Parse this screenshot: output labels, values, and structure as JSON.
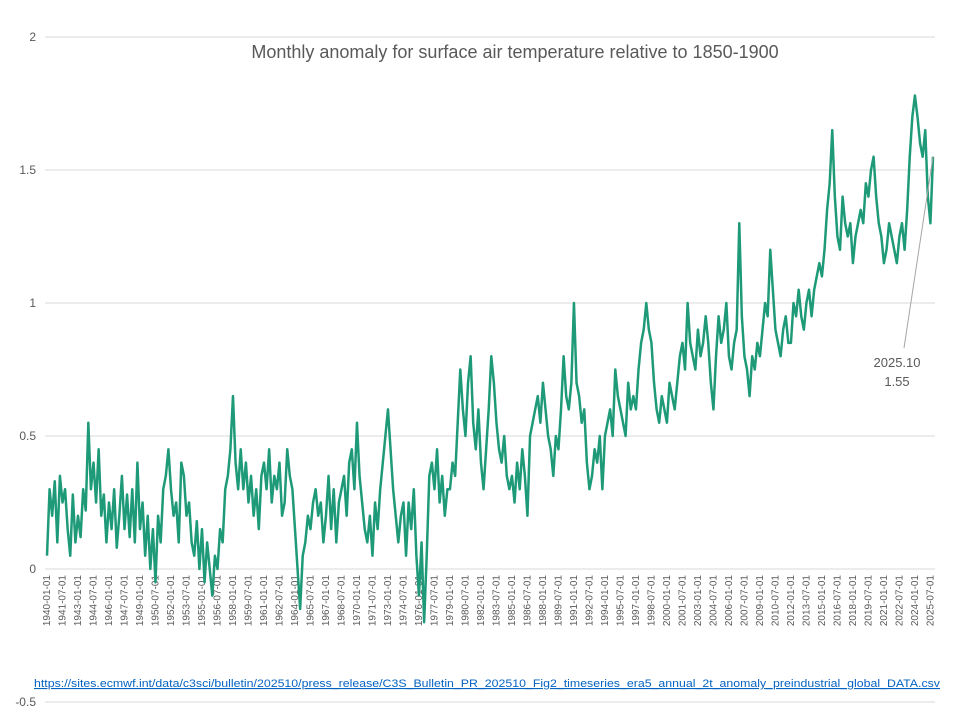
{
  "chart_data": {
    "type": "line",
    "title": "Monthly anomaly for surface air temperature relative to 1850-1900",
    "source": "https://sites.ecmwf.int/data/c3sci/bulletin/202510/press_release/C3S_Bulletin_PR_202510_Fig2_timeseries_era5_annual_2t_anomaly_preindustrial_global_DATA.csv",
    "annotation": {
      "label": "2025.10",
      "value": 1.55
    },
    "ylim": [
      -0.5,
      2
    ],
    "yticks": [
      -0.5,
      0,
      0.5,
      1,
      1.5,
      2
    ],
    "grid": true,
    "categories": [
      "1940-01-01",
      null,
      null,
      null,
      null,
      null,
      "1941-07-01",
      null,
      null,
      null,
      null,
      null,
      "1943-01-01",
      null,
      null,
      null,
      null,
      null,
      "1944-07-01",
      null,
      null,
      null,
      null,
      null,
      "1946-01-01",
      null,
      null,
      null,
      null,
      null,
      "1947-07-01",
      null,
      null,
      null,
      null,
      null,
      "1949-01-01",
      null,
      null,
      null,
      null,
      null,
      "1950-07-01",
      null,
      null,
      null,
      null,
      null,
      "1952-01-01",
      null,
      null,
      null,
      null,
      null,
      "1953-07-01",
      null,
      null,
      null,
      null,
      null,
      "1955-01-01",
      null,
      null,
      null,
      null,
      null,
      "1956-07-01",
      null,
      null,
      null,
      null,
      null,
      "1958-01-01",
      null,
      null,
      null,
      null,
      null,
      "1959-07-01",
      null,
      null,
      null,
      null,
      null,
      "1961-01-01",
      null,
      null,
      null,
      null,
      null,
      "1962-07-01",
      null,
      null,
      null,
      null,
      null,
      "1964-01-01",
      null,
      null,
      null,
      null,
      null,
      "1965-07-01",
      null,
      null,
      null,
      null,
      null,
      "1967-01-01",
      null,
      null,
      null,
      null,
      null,
      "1968-07-01",
      null,
      null,
      null,
      null,
      null,
      "1970-01-01",
      null,
      null,
      null,
      null,
      null,
      "1971-07-01",
      null,
      null,
      null,
      null,
      null,
      "1973-01-01",
      null,
      null,
      null,
      null,
      null,
      "1974-07-01",
      null,
      null,
      null,
      null,
      null,
      "1976-01-01",
      null,
      null,
      null,
      null,
      null,
      "1977-07-01",
      null,
      null,
      null,
      null,
      null,
      "1979-01-01",
      null,
      null,
      null,
      null,
      null,
      "1980-07-01",
      null,
      null,
      null,
      null,
      null,
      "1982-01-01",
      null,
      null,
      null,
      null,
      null,
      "1983-07-01",
      null,
      null,
      null,
      null,
      null,
      "1985-01-01",
      null,
      null,
      null,
      null,
      null,
      "1986-07-01",
      null,
      null,
      null,
      null,
      null,
      "1988-01-01",
      null,
      null,
      null,
      null,
      null,
      "1989-07-01",
      null,
      null,
      null,
      null,
      null,
      "1991-01-01",
      null,
      null,
      null,
      null,
      null,
      "1992-07-01",
      null,
      null,
      null,
      null,
      null,
      "1994-01-01",
      null,
      null,
      null,
      null,
      null,
      "1995-07-01",
      null,
      null,
      null,
      null,
      null,
      "1997-01-01",
      null,
      null,
      null,
      null,
      null,
      "1998-07-01",
      null,
      null,
      null,
      null,
      null,
      "2000-01-01",
      null,
      null,
      null,
      null,
      null,
      "2001-07-01",
      null,
      null,
      null,
      null,
      null,
      "2003-01-01",
      null,
      null,
      null,
      null,
      null,
      "2004-07-01",
      null,
      null,
      null,
      null,
      null,
      "2006-01-01",
      null,
      null,
      null,
      null,
      null,
      "2007-07-01",
      null,
      null,
      null,
      null,
      null,
      "2009-01-01",
      null,
      null,
      null,
      null,
      null,
      "2010-07-01",
      null,
      null,
      null,
      null,
      null,
      "2012-01-01",
      null,
      null,
      null,
      null,
      null,
      "2013-07-01",
      null,
      null,
      null,
      null,
      null,
      "2015-01-01",
      null,
      null,
      null,
      null,
      null,
      "2016-07-01",
      null,
      null,
      null,
      null,
      null,
      "2018-01-01",
      null,
      null,
      null,
      null,
      null,
      "2019-07-01",
      null,
      null,
      null,
      null,
      null,
      "2021-01-01",
      null,
      null,
      null,
      null,
      null,
      "2022-07-01",
      null,
      null,
      null,
      null,
      null,
      "2024-01-01",
      null,
      null,
      null,
      null,
      null,
      "2025-07-01",
      null
    ],
    "series": [
      {
        "color": "#1e9a78",
        "values": [
          0.05,
          0.3,
          0.2,
          0.33,
          0.1,
          0.35,
          0.25,
          0.3,
          0.15,
          0.05,
          0.28,
          0.1,
          0.2,
          0.12,
          0.3,
          0.22,
          0.55,
          0.3,
          0.4,
          0.25,
          0.45,
          0.2,
          0.28,
          0.1,
          0.25,
          0.15,
          0.3,
          0.08,
          0.2,
          0.35,
          0.15,
          0.28,
          0.12,
          0.3,
          0.1,
          0.4,
          0.15,
          0.25,
          0.05,
          0.2,
          0.0,
          0.15,
          -0.05,
          0.2,
          0.1,
          0.3,
          0.35,
          0.45,
          0.3,
          0.2,
          0.25,
          0.1,
          0.4,
          0.35,
          0.2,
          0.25,
          0.1,
          0.05,
          0.18,
          0.0,
          0.15,
          -0.05,
          0.1,
          0.0,
          -0.1,
          0.05,
          0.0,
          0.15,
          0.1,
          0.3,
          0.35,
          0.45,
          0.65,
          0.4,
          0.3,
          0.45,
          0.3,
          0.4,
          0.25,
          0.35,
          0.2,
          0.3,
          0.15,
          0.35,
          0.4,
          0.3,
          0.45,
          0.25,
          0.35,
          0.3,
          0.4,
          0.2,
          0.25,
          0.45,
          0.35,
          0.3,
          0.15,
          0.0,
          -0.15,
          0.05,
          0.1,
          0.2,
          0.15,
          0.25,
          0.3,
          0.2,
          0.25,
          0.1,
          0.2,
          0.35,
          0.15,
          0.3,
          0.1,
          0.25,
          0.3,
          0.35,
          0.2,
          0.4,
          0.45,
          0.3,
          0.55,
          0.35,
          0.25,
          0.15,
          0.1,
          0.2,
          0.05,
          0.25,
          0.15,
          0.3,
          0.4,
          0.5,
          0.6,
          0.45,
          0.3,
          0.2,
          0.1,
          0.2,
          0.25,
          0.05,
          0.25,
          0.15,
          0.3,
          0.05,
          -0.1,
          0.1,
          -0.2,
          0.05,
          0.35,
          0.4,
          0.3,
          0.45,
          0.25,
          0.35,
          0.2,
          0.3,
          0.3,
          0.4,
          0.35,
          0.55,
          0.75,
          0.6,
          0.5,
          0.7,
          0.8,
          0.55,
          0.45,
          0.6,
          0.4,
          0.3,
          0.45,
          0.6,
          0.8,
          0.7,
          0.55,
          0.45,
          0.4,
          0.5,
          0.35,
          0.3,
          0.35,
          0.25,
          0.4,
          0.3,
          0.45,
          0.35,
          0.2,
          0.5,
          0.55,
          0.6,
          0.65,
          0.55,
          0.7,
          0.6,
          0.5,
          0.45,
          0.35,
          0.5,
          0.45,
          0.6,
          0.8,
          0.65,
          0.6,
          0.7,
          1.0,
          0.7,
          0.65,
          0.55,
          0.6,
          0.4,
          0.3,
          0.35,
          0.45,
          0.4,
          0.5,
          0.3,
          0.5,
          0.55,
          0.6,
          0.5,
          0.75,
          0.65,
          0.6,
          0.55,
          0.5,
          0.7,
          0.6,
          0.65,
          0.6,
          0.75,
          0.85,
          0.9,
          1.0,
          0.9,
          0.85,
          0.7,
          0.6,
          0.55,
          0.65,
          0.6,
          0.55,
          0.7,
          0.65,
          0.6,
          0.7,
          0.8,
          0.85,
          0.75,
          1.0,
          0.85,
          0.8,
          0.75,
          0.9,
          0.8,
          0.85,
          0.95,
          0.85,
          0.7,
          0.6,
          0.8,
          0.95,
          0.85,
          0.9,
          1.0,
          0.8,
          0.75,
          0.85,
          0.9,
          1.3,
          0.95,
          0.8,
          0.75,
          0.65,
          0.8,
          0.75,
          0.85,
          0.8,
          0.9,
          1.0,
          0.95,
          1.2,
          1.05,
          0.9,
          0.85,
          0.8,
          0.9,
          0.95,
          0.85,
          0.85,
          1.0,
          0.95,
          1.05,
          0.95,
          0.9,
          1.0,
          1.05,
          0.95,
          1.05,
          1.1,
          1.15,
          1.1,
          1.2,
          1.35,
          1.45,
          1.65,
          1.4,
          1.25,
          1.2,
          1.4,
          1.3,
          1.25,
          1.3,
          1.15,
          1.25,
          1.3,
          1.35,
          1.3,
          1.45,
          1.4,
          1.5,
          1.55,
          1.4,
          1.3,
          1.25,
          1.15,
          1.2,
          1.3,
          1.25,
          1.2,
          1.15,
          1.25,
          1.3,
          1.2,
          1.35,
          1.55,
          1.7,
          1.78,
          1.7,
          1.6,
          1.55,
          1.65,
          1.4,
          1.3,
          1.55
        ]
      }
    ]
  }
}
